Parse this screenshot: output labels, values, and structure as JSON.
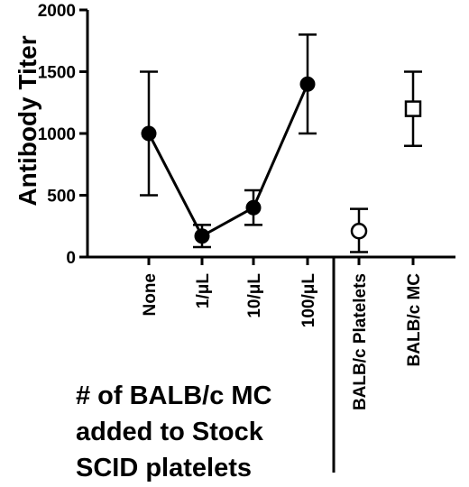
{
  "chart_data": {
    "type": "scatter",
    "ylabel": "Antibody Titer",
    "xlabel": "",
    "ylim": [
      0,
      2000
    ],
    "yticks": [
      0,
      500,
      1000,
      1500,
      2000
    ],
    "grid": false,
    "categories": [
      "None",
      "1/μL",
      "10/μL",
      "100/μL",
      "BALB/c Platelets",
      "BALB/c MC"
    ],
    "series": [
      {
        "marker": "filled-circle",
        "connected": true,
        "categories": [
          "None",
          "1/μL",
          "10/μL",
          "100/μL"
        ],
        "values": [
          1000,
          170,
          400,
          1400
        ],
        "error_low": [
          500,
          80,
          260,
          1000
        ],
        "error_high": [
          1500,
          260,
          540,
          1800
        ]
      },
      {
        "marker": "open-circle",
        "connected": false,
        "categories": [
          "BALB/c Platelets"
        ],
        "values": [
          210
        ],
        "error_low": [
          40
        ],
        "error_high": [
          390
        ]
      },
      {
        "marker": "open-square",
        "connected": false,
        "categories": [
          "BALB/c MC"
        ],
        "values": [
          1200
        ],
        "error_low": [
          900
        ],
        "error_high": [
          1500
        ]
      }
    ],
    "group_caption": [
      "# of BALB/c MC",
      "added to Stock",
      "SCID platelets"
    ]
  }
}
